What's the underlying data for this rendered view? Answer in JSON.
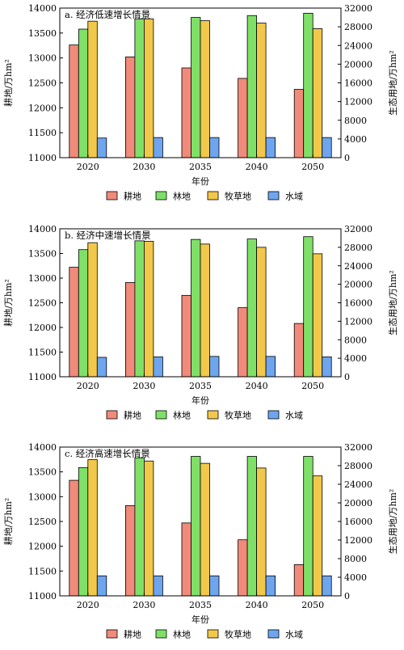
{
  "colors": {
    "耕地": "#f08a7a",
    "林地": "#7fe068",
    "牧草地": "#f2c84b",
    "水域": "#6ea5ef",
    "edge": "#000000"
  },
  "chart_data": [
    {
      "type": "bar",
      "title": "a. 经济低速增长情景",
      "xlabel": "年份",
      "ylabel_left": "耕地/万hm²",
      "ylabel_right": "生态用地/万hm²",
      "categories": [
        "2020",
        "2030",
        "2035",
        "2040",
        "2050"
      ],
      "ylim_left": [
        11000,
        14000
      ],
      "yticks_left": [
        "11000",
        "11500",
        "12000",
        "12500",
        "13000",
        "13500",
        "14000"
      ],
      "ylim_right": [
        0,
        32000
      ],
      "yticks_right": [
        "0",
        "4000",
        "8000",
        "12000",
        "16000",
        "20000",
        "24000",
        "28000",
        "32000"
      ],
      "series": [
        {
          "name": "耕地",
          "axis": "left",
          "values": [
            13260,
            13020,
            12800,
            12590,
            12370
          ]
        },
        {
          "name": "林地",
          "axis": "right",
          "values": [
            27500,
            29700,
            30000,
            30400,
            30900
          ]
        },
        {
          "name": "牧草地",
          "axis": "right",
          "values": [
            29200,
            29700,
            29300,
            28800,
            27600
          ]
        },
        {
          "name": "水域",
          "axis": "right",
          "values": [
            4200,
            4300,
            4300,
            4300,
            4300
          ]
        }
      ],
      "legend": {
        "position": "bottom",
        "items": [
          "耕地",
          "林地",
          "牧草地",
          "水域"
        ]
      }
    },
    {
      "type": "bar",
      "title": "b. 经济中速增长情景",
      "xlabel": "年份",
      "ylabel_left": "耕地/万hm²",
      "ylabel_right": "生态用地/万hm²",
      "categories": [
        "2020",
        "2030",
        "2035",
        "2040",
        "2050"
      ],
      "ylim_left": [
        11000,
        14000
      ],
      "yticks_left": [
        "11000",
        "11500",
        "12000",
        "12500",
        "13000",
        "13500",
        "14000"
      ],
      "ylim_right": [
        0,
        32000
      ],
      "yticks_right": [
        "0",
        "4000",
        "8000",
        "12000",
        "16000",
        "20000",
        "24000",
        "28000",
        "32000"
      ],
      "series": [
        {
          "name": "耕地",
          "axis": "left",
          "values": [
            13220,
            12910,
            12650,
            12400,
            12080
          ]
        },
        {
          "name": "林地",
          "axis": "right",
          "values": [
            27500,
            29400,
            29700,
            29800,
            30300
          ]
        },
        {
          "name": "牧草地",
          "axis": "right",
          "values": [
            29000,
            29300,
            28700,
            28000,
            26600
          ]
        },
        {
          "name": "水域",
          "axis": "right",
          "values": [
            4200,
            4300,
            4400,
            4400,
            4300
          ]
        }
      ],
      "legend": {
        "position": "bottom",
        "items": [
          "耕地",
          "林地",
          "牧草地",
          "水域"
        ]
      }
    },
    {
      "type": "bar",
      "title": "c. 经济高速增长情景",
      "xlabel": "年份",
      "ylabel_left": "耕地/万hm²",
      "ylabel_right": "生态用地/万hm²",
      "categories": [
        "2020",
        "2030",
        "2035",
        "2040",
        "2050"
      ],
      "ylim_left": [
        11000,
        14000
      ],
      "yticks_left": [
        "11000",
        "11500",
        "12000",
        "12500",
        "13000",
        "13500",
        "14000"
      ],
      "ylim_right": [
        0,
        32000
      ],
      "yticks_right": [
        "0",
        "4000",
        "8000",
        "12000",
        "16000",
        "20000",
        "24000",
        "28000",
        "32000"
      ],
      "series": [
        {
          "name": "耕地",
          "axis": "left",
          "values": [
            13330,
            12820,
            12470,
            12130,
            11630
          ]
        },
        {
          "name": "林地",
          "axis": "right",
          "values": [
            27600,
            29700,
            30000,
            30000,
            30000
          ]
        },
        {
          "name": "牧草地",
          "axis": "right",
          "values": [
            29300,
            29000,
            28500,
            27500,
            25800
          ]
        },
        {
          "name": "水域",
          "axis": "right",
          "values": [
            4300,
            4300,
            4300,
            4300,
            4300
          ]
        }
      ],
      "legend": {
        "position": "bottom",
        "items": [
          "耕地",
          "林地",
          "牧草地",
          "水域"
        ]
      }
    }
  ]
}
